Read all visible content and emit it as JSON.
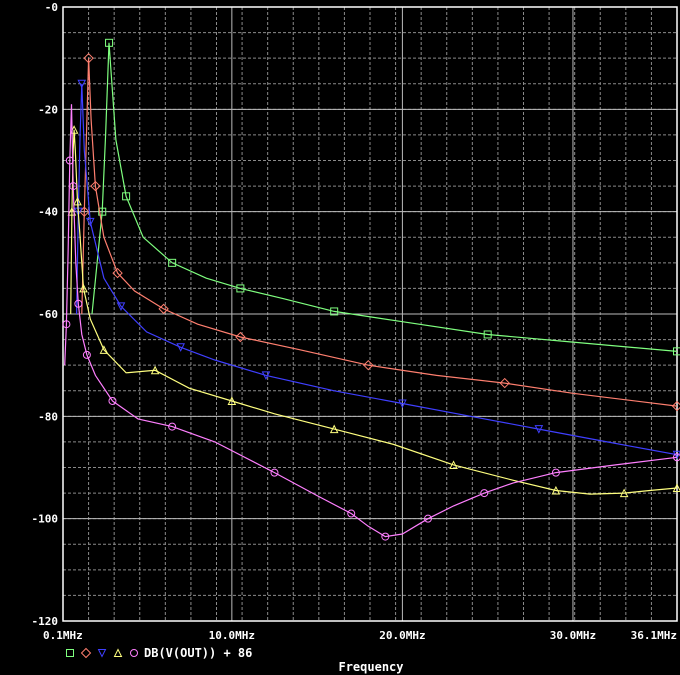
{
  "chart_data": {
    "type": "line",
    "title": "",
    "xlabel": "Frequency",
    "ylabel": "",
    "xlim": [
      0.1,
      36.1
    ],
    "ylim": [
      -120,
      0
    ],
    "x_unit": "MHz",
    "x_ticks": [
      0.1,
      10.0,
      20.0,
      30.0,
      36.1
    ],
    "x_tick_labels": [
      "0.1MHz",
      "10.0MHz",
      "20.0MHz",
      "30.0MHz",
      "36.1MHz"
    ],
    "y_ticks": [
      -120,
      -100,
      -80,
      -60,
      -40,
      -20,
      0
    ],
    "y_tick_labels": [
      "-120",
      "-100",
      "-80",
      "-60",
      "-40",
      "-20",
      "-0"
    ],
    "grid": true,
    "background": "#000000",
    "legend_text": "DB(V(OUT)) + 86",
    "legend_position": "bottom-left",
    "series": [
      {
        "marker": "square",
        "color": "#7fff7f",
        "x": [
          1.8,
          2.4,
          2.6,
          2.8,
          3.2,
          3.8,
          4.8,
          6.5,
          8.5,
          10.5,
          13,
          16,
          20,
          25,
          30,
          36.1
        ],
        "y": [
          -60,
          -40,
          -25,
          -7,
          -26,
          -37,
          -45,
          -50,
          -53,
          -55,
          -57,
          -59.5,
          -61.5,
          -64,
          -65.5,
          -67.3
        ]
      },
      {
        "marker": "diamond",
        "color": "#ff7f6f",
        "x": [
          1.2,
          1.35,
          1.5,
          1.6,
          1.75,
          2.0,
          2.5,
          3.3,
          4.3,
          6,
          8,
          10.5,
          14,
          18,
          22,
          26,
          30,
          36.1
        ],
        "y": [
          -60,
          -40,
          -22,
          -10,
          -22,
          -35,
          -45,
          -52,
          -55.5,
          -59,
          -62,
          -64.5,
          -67,
          -70,
          -72,
          -73.5,
          -75.5,
          -78
        ]
      },
      {
        "marker": "triangle-down",
        "color": "#3f3fff",
        "x": [
          0.9,
          1.0,
          1.1,
          1.2,
          1.35,
          1.7,
          2.5,
          3.5,
          5,
          7,
          9,
          12,
          16,
          20,
          24,
          28,
          32,
          36.1
        ],
        "y": [
          -60,
          -40,
          -25,
          -15,
          -28,
          -42,
          -53,
          -58.5,
          -63.5,
          -66.5,
          -69,
          -72,
          -75,
          -77.5,
          -80,
          -82.5,
          -85,
          -87.5
        ]
      },
      {
        "marker": "triangle",
        "color": "#ffff7f",
        "x": [
          0.55,
          0.62,
          0.7,
          0.75,
          0.82,
          0.95,
          1.1,
          1.3,
          1.7,
          2.5,
          3.8,
          5.5,
          7.5,
          10,
          12.5,
          16,
          19.5,
          23,
          26.5,
          29,
          31,
          33,
          34.5,
          36.1
        ],
        "y": [
          -60,
          -40,
          -28,
          -24,
          -28,
          -38,
          -45,
          -55,
          -61,
          -67,
          -71.5,
          -71,
          -74.5,
          -77,
          -79.5,
          -82.5,
          -85.5,
          -89.5,
          -92.5,
          -94.5,
          -95.2,
          -95,
          -94.5,
          -94
        ]
      },
      {
        "marker": "circle",
        "color": "#ff7fff",
        "x": [
          0.2,
          0.3,
          0.4,
          0.5,
          0.6,
          0.7,
          0.85,
          1.0,
          1.2,
          1.5,
          2.0,
          3.0,
          4.5,
          6.5,
          9,
          12.5,
          15,
          17,
          18,
          19,
          20,
          21.5,
          23,
          24.8,
          26.5,
          29,
          32.5,
          36.1
        ],
        "y": [
          -70,
          -62,
          -48,
          -30,
          -19,
          -35,
          -50,
          -58,
          -64,
          -68,
          -72,
          -77,
          -80.5,
          -82,
          -85,
          -91,
          -95.5,
          -99,
          -101.5,
          -103.5,
          -103,
          -100,
          -97.5,
          -95,
          -93,
          -91,
          -89.5,
          -88
        ]
      }
    ]
  }
}
